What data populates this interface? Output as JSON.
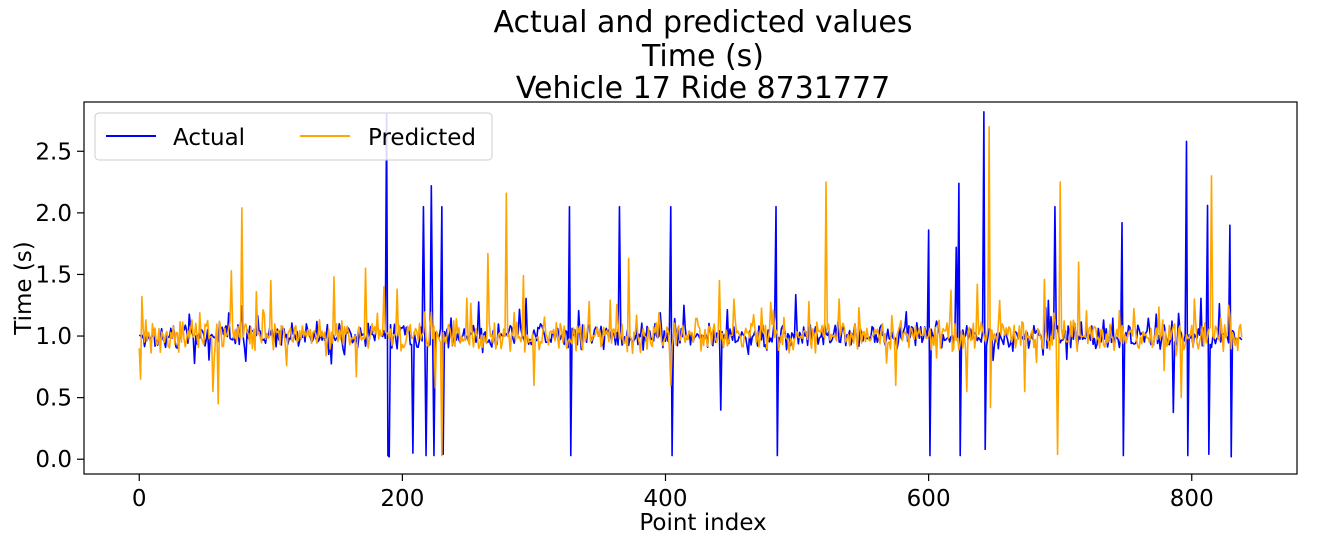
{
  "chart_data": {
    "type": "line",
    "title_lines": [
      "Actual and predicted values",
      "Time (s)",
      "Vehicle 17 Ride 8731777"
    ],
    "xlabel": "Point index",
    "ylabel": "Time (s)",
    "xlim": [
      -42,
      880
    ],
    "ylim": [
      -0.12,
      2.9
    ],
    "xticks": [
      0,
      200,
      400,
      600,
      800
    ],
    "xtick_labels": [
      "0",
      "200",
      "400",
      "600",
      "800"
    ],
    "yticks": [
      0.0,
      0.5,
      1.0,
      1.5,
      2.0,
      2.5
    ],
    "ytick_labels": [
      "0.0",
      "0.5",
      "1.0",
      "1.5",
      "2.0",
      "2.5"
    ],
    "legend": {
      "placement": "top-left",
      "columns": 2
    },
    "series": [
      {
        "name": "Actual",
        "color": "#0000ff",
        "n_points": 839,
        "baseline": 1.0,
        "noise_amplitude": 0.12,
        "noise_seed": 17,
        "spikes": [
          {
            "x": 188,
            "y": 2.8
          },
          {
            "x": 189,
            "y": 0.03
          },
          {
            "x": 190,
            "y": 0.02
          },
          {
            "x": 208,
            "y": 0.05
          },
          {
            "x": 216,
            "y": 2.05
          },
          {
            "x": 218,
            "y": 0.03
          },
          {
            "x": 222,
            "y": 2.22
          },
          {
            "x": 224,
            "y": 0.03
          },
          {
            "x": 230,
            "y": 2.05
          },
          {
            "x": 231,
            "y": 0.04
          },
          {
            "x": 327,
            "y": 2.05
          },
          {
            "x": 328,
            "y": 0.03
          },
          {
            "x": 365,
            "y": 2.05
          },
          {
            "x": 404,
            "y": 2.05
          },
          {
            "x": 405,
            "y": 0.03
          },
          {
            "x": 442,
            "y": 0.4
          },
          {
            "x": 484,
            "y": 2.05
          },
          {
            "x": 485,
            "y": 0.03
          },
          {
            "x": 600,
            "y": 1.86
          },
          {
            "x": 601,
            "y": 0.03
          },
          {
            "x": 621,
            "y": 1.72
          },
          {
            "x": 623,
            "y": 2.24
          },
          {
            "x": 624,
            "y": 0.03
          },
          {
            "x": 642,
            "y": 2.82
          },
          {
            "x": 643,
            "y": 0.08
          },
          {
            "x": 696,
            "y": 2.05
          },
          {
            "x": 747,
            "y": 1.92
          },
          {
            "x": 748,
            "y": 0.03
          },
          {
            "x": 786,
            "y": 0.38
          },
          {
            "x": 796,
            "y": 2.58
          },
          {
            "x": 797,
            "y": 0.03
          },
          {
            "x": 812,
            "y": 2.06
          },
          {
            "x": 813,
            "y": 0.04
          },
          {
            "x": 829,
            "y": 1.9
          },
          {
            "x": 830,
            "y": 0.02
          }
        ]
      },
      {
        "name": "Predicted",
        "color": "#ffa500",
        "n_points": 839,
        "baseline": 1.0,
        "noise_amplitude": 0.15,
        "noise_seed": 42,
        "spikes": [
          {
            "x": 1,
            "y": 0.65
          },
          {
            "x": 2,
            "y": 1.32
          },
          {
            "x": 56,
            "y": 0.55
          },
          {
            "x": 60,
            "y": 0.45
          },
          {
            "x": 70,
            "y": 1.53
          },
          {
            "x": 78,
            "y": 2.04
          },
          {
            "x": 89,
            "y": 1.36
          },
          {
            "x": 100,
            "y": 1.45
          },
          {
            "x": 148,
            "y": 1.48
          },
          {
            "x": 165,
            "y": 0.67
          },
          {
            "x": 172,
            "y": 1.55
          },
          {
            "x": 186,
            "y": 1.4
          },
          {
            "x": 196,
            "y": 1.38
          },
          {
            "x": 225,
            "y": 0.58
          },
          {
            "x": 230,
            "y": 0.03
          },
          {
            "x": 265,
            "y": 1.67
          },
          {
            "x": 279,
            "y": 2.16
          },
          {
            "x": 292,
            "y": 1.49
          },
          {
            "x": 300,
            "y": 0.6
          },
          {
            "x": 372,
            "y": 1.63
          },
          {
            "x": 404,
            "y": 0.6
          },
          {
            "x": 441,
            "y": 1.45
          },
          {
            "x": 452,
            "y": 1.3
          },
          {
            "x": 522,
            "y": 2.25
          },
          {
            "x": 532,
            "y": 1.3
          },
          {
            "x": 575,
            "y": 0.6
          },
          {
            "x": 617,
            "y": 1.37
          },
          {
            "x": 629,
            "y": 0.55
          },
          {
            "x": 637,
            "y": 1.42
          },
          {
            "x": 646,
            "y": 2.7
          },
          {
            "x": 647,
            "y": 0.42
          },
          {
            "x": 673,
            "y": 0.55
          },
          {
            "x": 688,
            "y": 1.46
          },
          {
            "x": 698,
            "y": 0.04
          },
          {
            "x": 700,
            "y": 2.25
          },
          {
            "x": 714,
            "y": 1.6
          },
          {
            "x": 779,
            "y": 0.72
          },
          {
            "x": 792,
            "y": 0.5
          },
          {
            "x": 802,
            "y": 1.3
          },
          {
            "x": 815,
            "y": 2.3
          },
          {
            "x": 828,
            "y": 1.25
          }
        ]
      }
    ]
  }
}
